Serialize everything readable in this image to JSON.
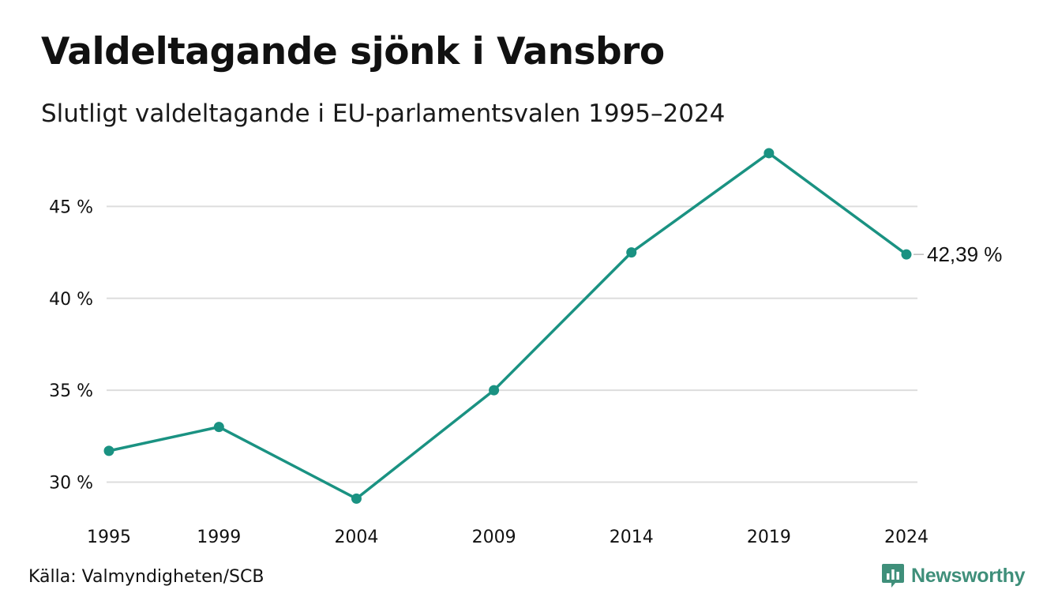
{
  "title": "Valdeltagande sjönk i Vansbro",
  "subtitle": "Slutligt valdeltagande i EU-parlamentsvalen 1995–2024",
  "source": "Källa: Valmyndigheten/SCB",
  "brand": {
    "name": "Newsworthy",
    "icon": "newsworthy-logo-icon",
    "color": "#3f8f7a"
  },
  "chart_data": {
    "type": "line",
    "categories": [
      "1995",
      "1999",
      "2004",
      "2009",
      "2014",
      "2019",
      "2024"
    ],
    "values": [
      31.7,
      33.0,
      29.1,
      35.0,
      42.5,
      47.9,
      42.39
    ],
    "end_label": "42,39 %",
    "yticks": [
      30,
      35,
      40,
      45
    ],
    "ytick_labels": [
      "30 %",
      "35 %",
      "40 %",
      "45 %"
    ],
    "ylim": [
      28.3,
      48.5
    ],
    "grid": true,
    "line_color": "#1a9282",
    "grid_color": "#dddddd",
    "xlabel": "",
    "ylabel": ""
  }
}
